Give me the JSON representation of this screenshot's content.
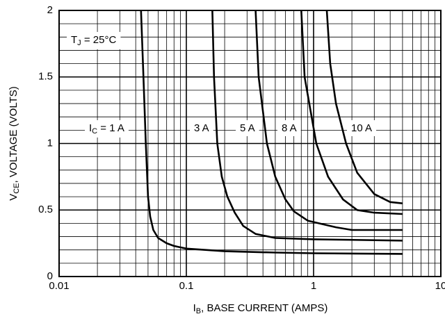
{
  "chart_data": {
    "type": "line",
    "x_label": {
      "main": "I",
      "sub": "B",
      "rest": ", BASE CURRENT (AMPS)"
    },
    "y_label": {
      "main": "V",
      "sub": "CE",
      "rest": ", VOLTAGE (VOLTS)"
    },
    "annotation": {
      "main": "T",
      "sub": "J",
      "rest": " = 25°C"
    },
    "first_label_prefix": {
      "main": "I",
      "sub": "C",
      "rest": " = "
    },
    "xscale": "log",
    "xlim": [
      0.01,
      10
    ],
    "xticks": [
      0.01,
      0.1,
      1,
      10
    ],
    "ylim": [
      0,
      2
    ],
    "yticks": [
      0,
      0.5,
      1,
      1.5,
      2
    ],
    "grid": true,
    "minor_grid": true,
    "color": "#000000",
    "series": [
      {
        "name": "1 A",
        "x": [
          0.044,
          0.046,
          0.048,
          0.05,
          0.052,
          0.055,
          0.06,
          0.07,
          0.08,
          0.1,
          0.2,
          0.5,
          1,
          5
        ],
        "y": [
          2,
          1.5,
          1.0,
          0.6,
          0.45,
          0.35,
          0.29,
          0.25,
          0.23,
          0.21,
          0.19,
          0.18,
          0.175,
          0.17
        ]
      },
      {
        "name": "3 A",
        "x": [
          0.16,
          0.165,
          0.175,
          0.19,
          0.21,
          0.24,
          0.28,
          0.35,
          0.5,
          1,
          5
        ],
        "y": [
          2,
          1.5,
          1.0,
          0.75,
          0.6,
          0.48,
          0.38,
          0.32,
          0.29,
          0.28,
          0.27
        ]
      },
      {
        "name": "5 A",
        "x": [
          0.35,
          0.37,
          0.43,
          0.5,
          0.6,
          0.7,
          0.9,
          1.5,
          2,
          5
        ],
        "y": [
          2,
          1.5,
          1.0,
          0.75,
          0.58,
          0.49,
          0.42,
          0.37,
          0.35,
          0.35
        ]
      },
      {
        "name": "8 A",
        "x": [
          0.8,
          0.85,
          1.05,
          1.3,
          1.7,
          2.2,
          3,
          5
        ],
        "y": [
          2,
          1.5,
          1.0,
          0.75,
          0.58,
          0.5,
          0.48,
          0.47
        ]
      },
      {
        "name": "10 A",
        "x": [
          1.27,
          1.35,
          1.5,
          1.8,
          2.2,
          3,
          4,
          5
        ],
        "y": [
          2,
          1.6,
          1.3,
          1.0,
          0.78,
          0.62,
          0.56,
          0.55
        ]
      }
    ]
  }
}
